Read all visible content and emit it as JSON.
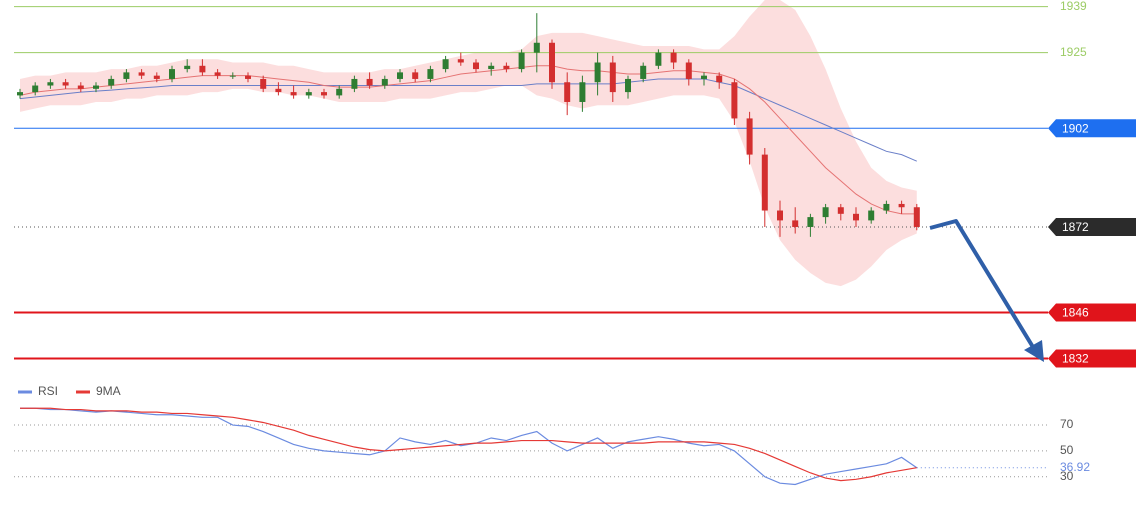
{
  "chart_data": [
    {
      "type": "candlestick",
      "up_color": "#2e7d32",
      "down_color": "#d32f2f",
      "ylim": [
        1827,
        1941
      ],
      "open": [
        1912,
        1913,
        1915,
        1916,
        1915,
        1914,
        1915,
        1917,
        1919,
        1918,
        1917,
        1920,
        1921,
        1919,
        1918,
        1918,
        1917,
        1914,
        1913,
        1912,
        1913,
        1912,
        1914,
        1917,
        1915,
        1917,
        1919,
        1917,
        1920,
        1923,
        1922,
        1920,
        1921,
        1920,
        1925,
        1928,
        1916,
        1910,
        1916,
        1922,
        1913,
        1917,
        1921,
        1925,
        1922,
        1917,
        1918,
        1916,
        1905,
        1894,
        1877,
        1874,
        1872,
        1875,
        1878,
        1876,
        1874,
        1877,
        1879,
        1878
      ],
      "high": [
        1914,
        1916,
        1917,
        1917,
        1916,
        1916,
        1918,
        1920,
        1920,
        1919,
        1921,
        1923,
        1923,
        1920,
        1919,
        1919,
        1918,
        1916,
        1915,
        1914,
        1914,
        1915,
        1918,
        1919,
        1918,
        1920,
        1920,
        1921,
        1924,
        1925,
        1923,
        1922,
        1922,
        1926,
        1937,
        1929,
        1919,
        1918,
        1925,
        1924,
        1918,
        1922,
        1926,
        1926,
        1923,
        1919,
        1919,
        1917,
        1907,
        1896,
        1880,
        1878,
        1876,
        1879,
        1879,
        1878,
        1878,
        1880,
        1880,
        1879
      ],
      "low": [
        1911,
        1912,
        1914,
        1914,
        1913,
        1913,
        1914,
        1916,
        1917,
        1916,
        1916,
        1919,
        1918,
        1917,
        1917,
        1916,
        1913,
        1912,
        1911,
        1911,
        1911,
        1911,
        1913,
        1914,
        1914,
        1916,
        1916,
        1916,
        1919,
        1921,
        1919,
        1918,
        1919,
        1919,
        1919,
        1914,
        1906,
        1907,
        1912,
        1910,
        1911,
        1916,
        1920,
        1920,
        1915,
        1915,
        1914,
        1903,
        1891,
        1872,
        1869,
        1870,
        1869,
        1873,
        1874,
        1872,
        1873,
        1876,
        1876,
        1871
      ],
      "close": [
        1913,
        1915,
        1916,
        1915,
        1914,
        1915,
        1917,
        1919,
        1918,
        1917,
        1920,
        1921,
        1919,
        1918,
        1918,
        1917,
        1914,
        1913,
        1912,
        1913,
        1912,
        1914,
        1917,
        1915,
        1917,
        1919,
        1917,
        1920,
        1923,
        1922,
        1920,
        1921,
        1920,
        1925,
        1928,
        1916,
        1910,
        1916,
        1922,
        1913,
        1917,
        1921,
        1925,
        1922,
        1917,
        1918,
        1916,
        1905,
        1894,
        1877,
        1874,
        1872,
        1875,
        1878,
        1876,
        1874,
        1877,
        1879,
        1878,
        1872
      ],
      "ma_short": {
        "color": "#e57373",
        "values": [
          1912,
          1913,
          1913.5,
          1914,
          1914,
          1914.5,
          1915,
          1915.5,
          1916,
          1916.5,
          1917,
          1917.5,
          1918,
          1918,
          1918,
          1918,
          1917.5,
          1917,
          1916.5,
          1916,
          1915,
          1914.5,
          1914.5,
          1914.5,
          1915,
          1915.5,
          1916,
          1916.5,
          1917.5,
          1918.5,
          1919,
          1919.5,
          1920,
          1920.5,
          1921,
          1921,
          1920,
          1919.5,
          1919.5,
          1919,
          1918.5,
          1918.5,
          1919,
          1919.5,
          1919.5,
          1919,
          1918.5,
          1917,
          1914,
          1910,
          1905,
          1900,
          1895,
          1890,
          1886,
          1882,
          1879,
          1877,
          1876,
          1876
        ]
      },
      "ma_long": {
        "color": "#6a7fc8",
        "values": [
          1911,
          1911.5,
          1912,
          1912.5,
          1913,
          1913.3,
          1913.6,
          1914,
          1914.3,
          1914.6,
          1915,
          1915,
          1915,
          1915,
          1915,
          1915,
          1915,
          1915,
          1915,
          1915,
          1915,
          1915,
          1915,
          1915,
          1915,
          1915,
          1915,
          1915,
          1915,
          1915,
          1915,
          1915,
          1915,
          1915,
          1915.5,
          1915.5,
          1915.5,
          1915.5,
          1915.5,
          1915.5,
          1916,
          1916.5,
          1917,
          1917,
          1917,
          1917,
          1916,
          1915,
          1913,
          1911,
          1909,
          1907,
          1905,
          1903,
          1901,
          1899,
          1897,
          1895,
          1894,
          1892
        ]
      },
      "band": {
        "color": "#fbd3d3",
        "upper": [
          1917,
          1918,
          1918,
          1919,
          1919,
          1919,
          1920,
          1920,
          1921,
          1921,
          1922,
          1923,
          1923,
          1923,
          1922,
          1922,
          1922,
          1921,
          1921,
          1920,
          1919,
          1919,
          1919,
          1919,
          1920,
          1920,
          1921,
          1922,
          1923,
          1924,
          1925,
          1925,
          1925,
          1926,
          1930,
          1931,
          1931,
          1931,
          1930,
          1929,
          1928,
          1927,
          1927,
          1927,
          1927,
          1926,
          1926,
          1930,
          1936,
          1941,
          1941,
          1938,
          1930,
          1920,
          1908,
          1898,
          1890,
          1886,
          1884,
          1883
        ],
        "lower": [
          1907,
          1908,
          1909,
          1909,
          1909,
          1910,
          1910,
          1911,
          1911,
          1912,
          1912,
          1912,
          1913,
          1913,
          1914,
          1914,
          1913,
          1913,
          1912,
          1912,
          1911,
          1910,
          1910,
          1910,
          1910,
          1911,
          1911,
          1911,
          1912,
          1913,
          1913,
          1914,
          1915,
          1915,
          1912,
          1911,
          1909,
          1908,
          1909,
          1909,
          1909,
          1910,
          1911,
          1912,
          1912,
          1912,
          1911,
          1904,
          1892,
          1878,
          1868,
          1862,
          1858,
          1855,
          1854,
          1856,
          1860,
          1865,
          1868,
          1870
        ]
      },
      "levels": [
        {
          "value": 1939,
          "color": "#9ccc65",
          "boxed": false,
          "dotted": false
        },
        {
          "value": 1925,
          "color": "#9ccc65",
          "boxed": false,
          "dotted": false
        },
        {
          "value": 1902,
          "color": "#1e6ff0",
          "boxed": true,
          "dotted": false
        },
        {
          "value": 1872,
          "color": "#2b2b2b",
          "boxed": true,
          "dotted": true
        },
        {
          "value": 1846,
          "color": "#e0141b",
          "boxed": true,
          "dotted": false
        },
        {
          "value": 1832,
          "color": "#e0141b",
          "boxed": true,
          "dotted": false
        }
      ]
    },
    {
      "type": "line",
      "ylim": [
        12,
        101
      ],
      "yticks": [
        70,
        50,
        30
      ],
      "grid": true,
      "series": [
        {
          "name": "RSI",
          "color": "#6b8be0",
          "values": [
            83,
            83,
            82,
            82,
            81,
            80,
            81,
            80,
            79,
            78,
            78,
            77,
            76,
            76,
            70,
            69,
            65,
            60,
            55,
            52,
            50,
            49,
            48,
            47,
            50,
            60,
            57,
            55,
            58,
            54,
            56,
            60,
            58,
            62,
            65,
            56,
            50,
            55,
            60,
            52,
            57,
            59,
            61,
            59,
            56,
            54,
            55,
            50,
            40,
            30,
            25,
            24,
            28,
            32,
            34,
            36,
            38,
            40,
            45,
            36.92
          ]
        },
        {
          "name": "9MA",
          "color": "#e53935",
          "values": [
            83,
            83,
            83,
            82,
            82,
            81,
            81,
            81,
            80,
            80,
            79,
            79,
            78,
            77,
            76,
            74,
            72,
            69,
            66,
            62,
            59,
            56,
            53,
            51,
            50,
            51,
            52,
            53,
            54,
            55,
            56,
            56,
            57,
            58,
            58,
            58,
            57,
            56,
            56,
            56,
            56,
            56,
            57,
            57,
            57,
            57,
            56,
            55,
            52,
            48,
            43,
            38,
            33,
            29,
            27,
            28,
            30,
            33,
            35,
            37
          ]
        }
      ]
    }
  ]
}
